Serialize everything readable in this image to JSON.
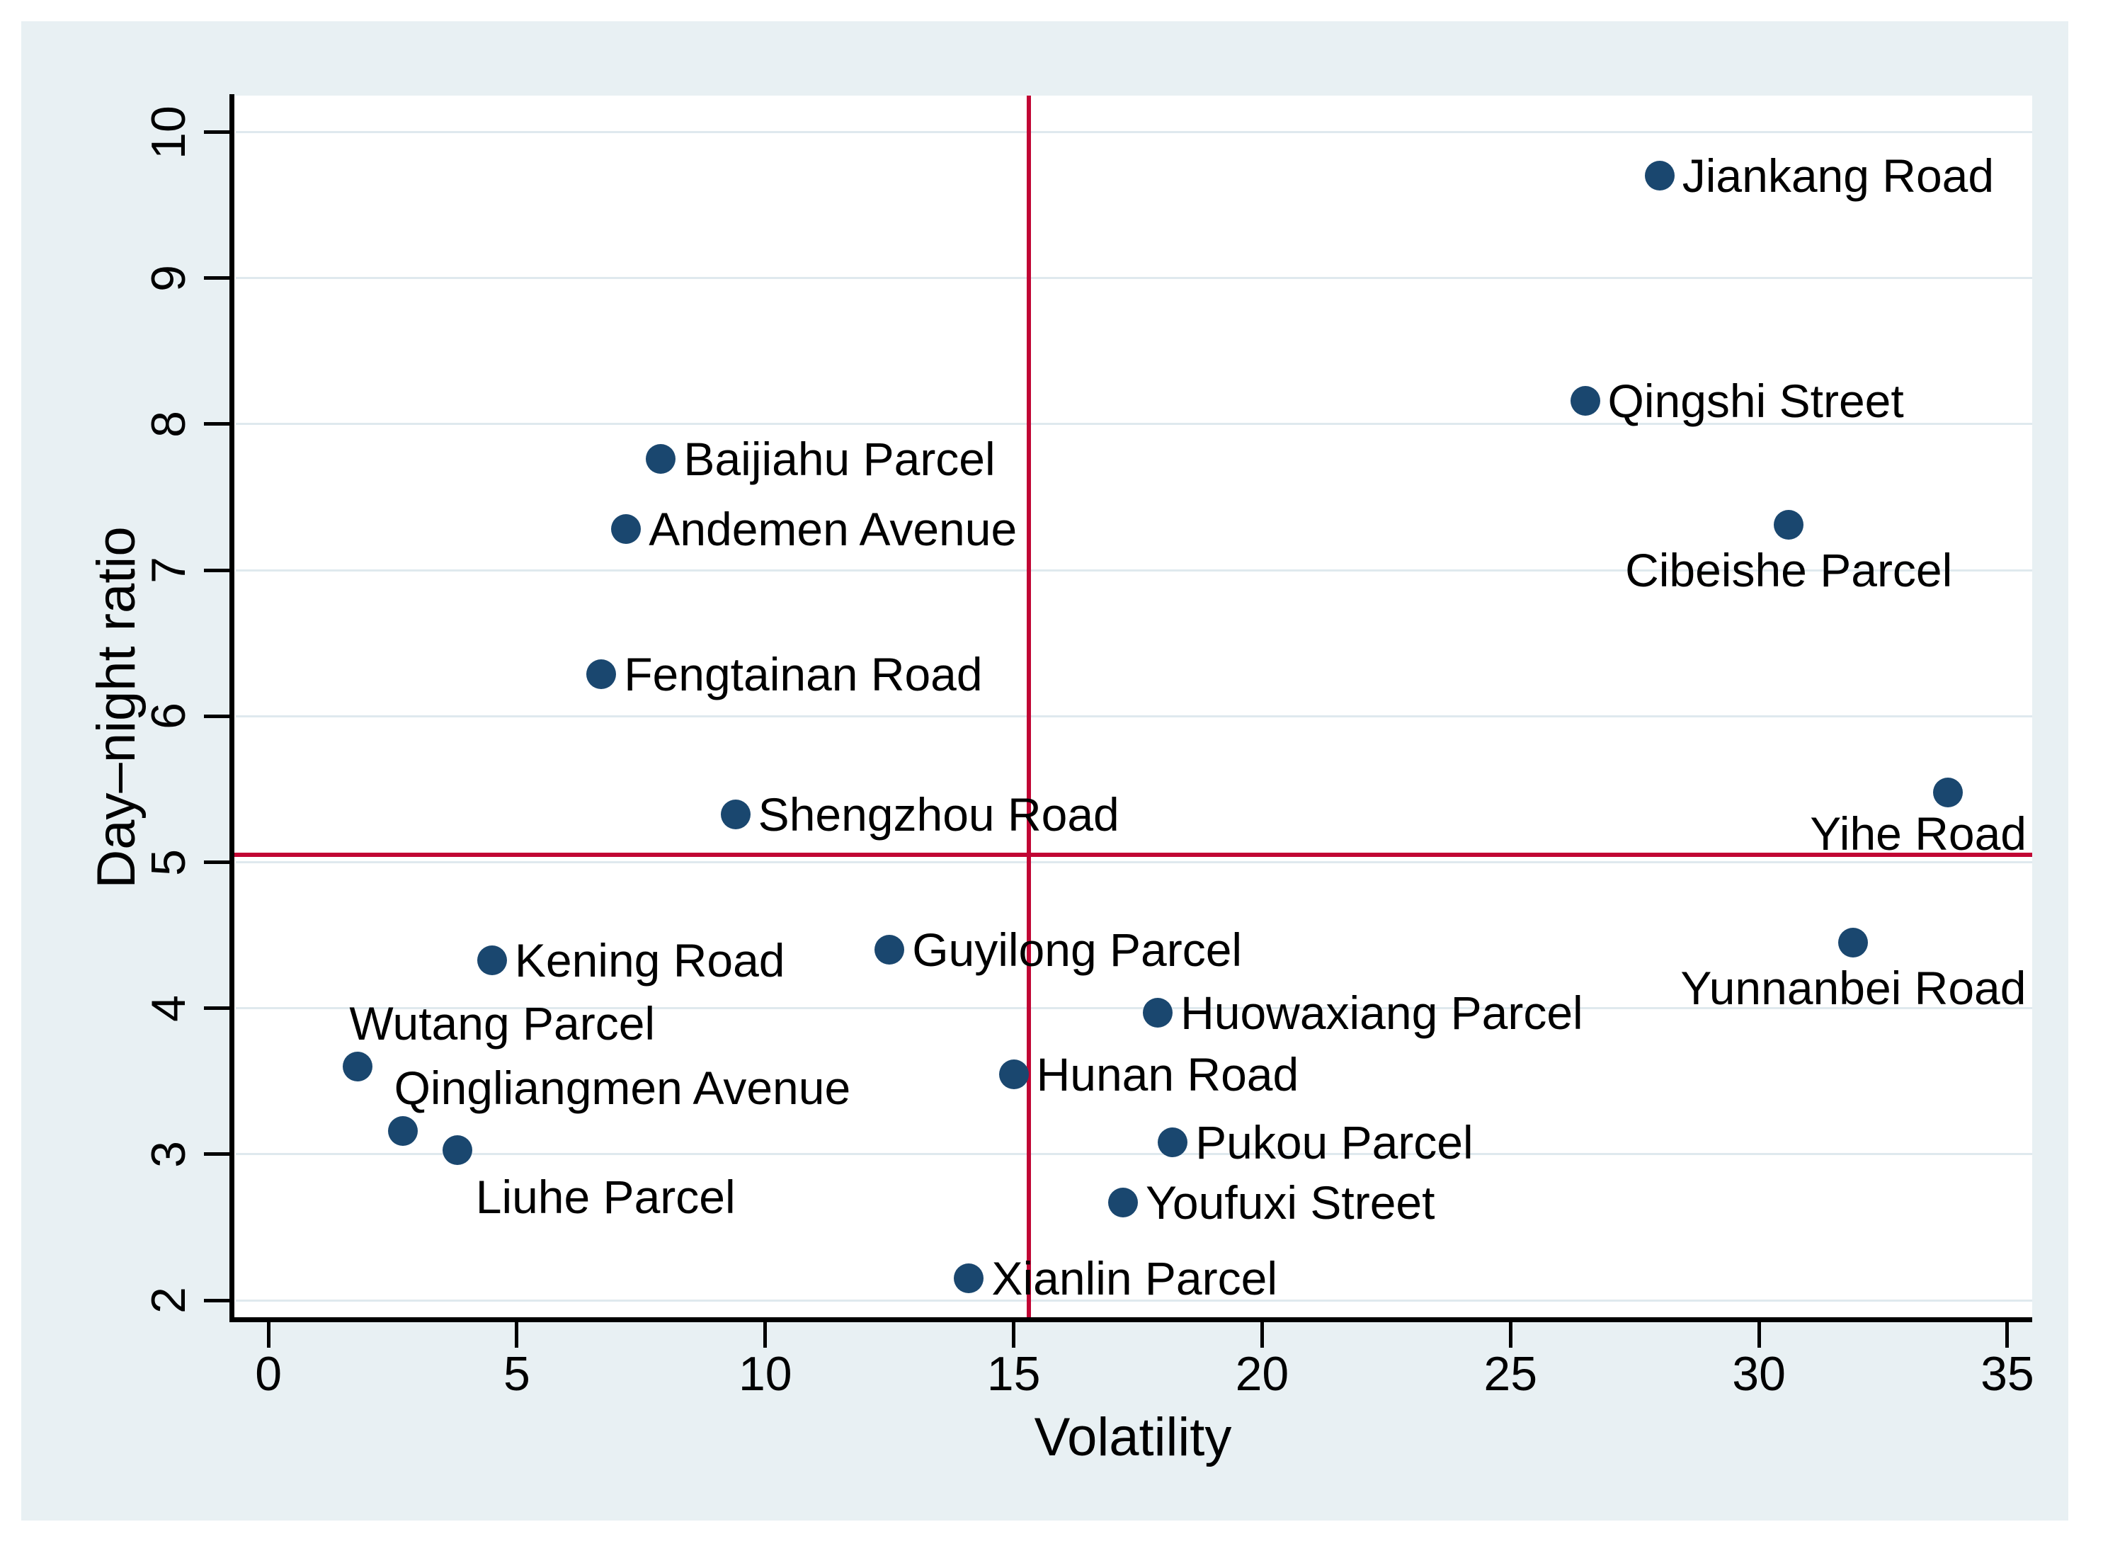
{
  "figure": {
    "background": "#ffffff",
    "panel_background": "#e8f0f3",
    "plot_background": "#ffffff",
    "gridline_color": "#dfe9ee",
    "axis_color": "#000000"
  },
  "chart_data": {
    "type": "scatter",
    "title": "",
    "xlabel": "Volatility",
    "ylabel": "Day–night ratio",
    "xlim": [
      -0.7,
      35.5
    ],
    "ylim": [
      1.87,
      10.25
    ],
    "x_ticks": [
      0,
      5,
      10,
      15,
      20,
      25,
      30,
      35
    ],
    "y_ticks": [
      2,
      3,
      4,
      5,
      6,
      7,
      8,
      9,
      10
    ],
    "grid": "horizontal",
    "legend_position": "none",
    "marker_color": "#1a476f",
    "ref_line_color": "#c10534",
    "ref_lines": {
      "vertical_x": 15.3,
      "horizontal_y": 5.05
    },
    "points": [
      {
        "label": "Jiankang Road",
        "x": 28.0,
        "y": 9.7,
        "label_position": "right"
      },
      {
        "label": "Qingshi Street",
        "x": 26.5,
        "y": 8.16,
        "label_position": "right"
      },
      {
        "label": "Baijiahu Parcel",
        "x": 7.9,
        "y": 7.76,
        "label_position": "right"
      },
      {
        "label": "Andemen Avenue",
        "x": 7.2,
        "y": 7.28,
        "label_position": "right"
      },
      {
        "label": "Cibeishe Parcel",
        "x": 30.6,
        "y": 7.31,
        "label_position": "below"
      },
      {
        "label": "Fengtainan Road",
        "x": 6.7,
        "y": 6.29,
        "label_position": "right"
      },
      {
        "label": "Shengzhou Road",
        "x": 9.4,
        "y": 5.33,
        "label_position": "right"
      },
      {
        "label": "Yihe Road",
        "x": 33.8,
        "y": 5.48,
        "label_position": "below-left-edge"
      },
      {
        "label": "Kening Road",
        "x": 4.5,
        "y": 4.33,
        "label_position": "right"
      },
      {
        "label": "Guyilong Parcel",
        "x": 12.5,
        "y": 4.4,
        "label_position": "right"
      },
      {
        "label": "Yunnanbei Road",
        "x": 31.9,
        "y": 4.45,
        "label_position": "below"
      },
      {
        "label": "Huowaxiang Parcel",
        "x": 17.9,
        "y": 3.97,
        "label_position": "right"
      },
      {
        "label": "Wutang Parcel",
        "x": 1.8,
        "y": 3.6,
        "label_position": "above-right"
      },
      {
        "label": "Hunan Road",
        "x": 15.0,
        "y": 3.55,
        "label_position": "right"
      },
      {
        "label": "Qingliangmen Avenue",
        "x": 2.7,
        "y": 3.16,
        "label_position": "above-right"
      },
      {
        "label": "Liuhe Parcel",
        "x": 3.8,
        "y": 3.03,
        "label_position": "below-right"
      },
      {
        "label": "Pukou Parcel",
        "x": 18.2,
        "y": 3.08,
        "label_position": "right"
      },
      {
        "label": "Youfuxi Street",
        "x": 17.2,
        "y": 2.67,
        "label_position": "right"
      },
      {
        "label": "Xianlin Parcel",
        "x": 14.1,
        "y": 2.15,
        "label_position": "right"
      }
    ]
  }
}
